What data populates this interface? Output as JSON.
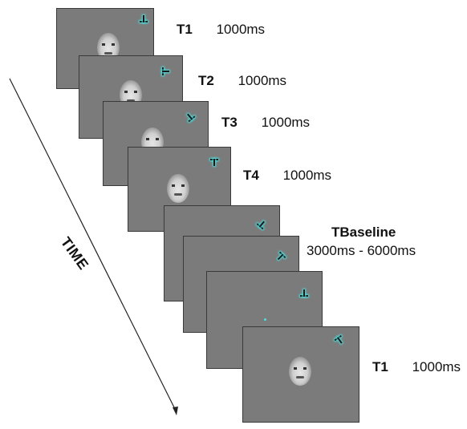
{
  "axis": {
    "label": "TIME"
  },
  "colors": {
    "screen": "#7b7b7b",
    "probe_glow": "#4de0e0",
    "arrow": "#222222"
  },
  "frames": [
    {
      "name": "T1",
      "duration": "1000ms",
      "face": "partial",
      "probe": "tee-up"
    },
    {
      "name": "T2",
      "duration": "1000ms",
      "face": "partial",
      "probe": "tee-right"
    },
    {
      "name": "T3",
      "duration": "1000ms",
      "face": "partial",
      "probe": "tee-diagonal"
    },
    {
      "name": "T4",
      "duration": "1000ms",
      "face": "full",
      "probe": "tee-up"
    },
    {
      "name": "TBaseline",
      "duration": "3000ms - 6000ms",
      "face": "none",
      "probe": "tee-diagonal"
    },
    {
      "name": "",
      "duration": "",
      "face": "none",
      "probe": "tee-diagonal"
    },
    {
      "name": "",
      "duration": "",
      "face": "none",
      "probe": "tee-up"
    },
    {
      "name": "T1",
      "duration": "1000ms",
      "face": "full",
      "probe": "tee-diagonal"
    }
  ]
}
